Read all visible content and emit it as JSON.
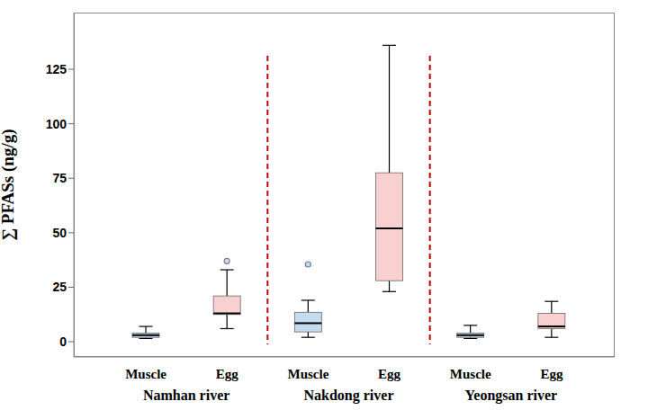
{
  "chart_data": {
    "type": "box",
    "y_label": "∑ PFASs (ng/g)",
    "categories": [
      "Muscle",
      "Egg",
      "Muscle",
      "Egg",
      "Muscle",
      "Egg"
    ],
    "groups": [
      "Namhan river",
      "Nakdong river",
      "Yeongsan river"
    ],
    "boxes": [
      {
        "min": 1.5,
        "q1": 2,
        "median": 3,
        "q3": 4,
        "max": 7,
        "outliers": []
      },
      {
        "min": 6,
        "q1": 12.5,
        "median": 13,
        "q3": 21,
        "max": 33,
        "outliers": [
          37
        ]
      },
      {
        "min": 2,
        "q1": 4.5,
        "median": 8.5,
        "q3": 13.5,
        "max": 19,
        "outliers": [
          35.5
        ]
      },
      {
        "min": 23,
        "q1": 28,
        "median": 52,
        "q3": 77.5,
        "max": 136,
        "outliers": []
      },
      {
        "min": 1.5,
        "q1": 2,
        "median": 3,
        "q3": 4,
        "max": 7.5,
        "outliers": []
      },
      {
        "min": 2,
        "q1": 6,
        "median": 7,
        "q3": 13,
        "max": 18.5,
        "outliers": []
      }
    ],
    "colors": [
      "#c5dcf0",
      "#f8d0d0",
      "#c5dcf0",
      "#f8d0d0",
      "#c5dcf0",
      "#f8d0d0"
    ],
    "ylim": [
      -7,
      151
    ],
    "yticks": [
      0,
      25,
      50,
      75,
      100,
      125
    ],
    "grid": false
  }
}
